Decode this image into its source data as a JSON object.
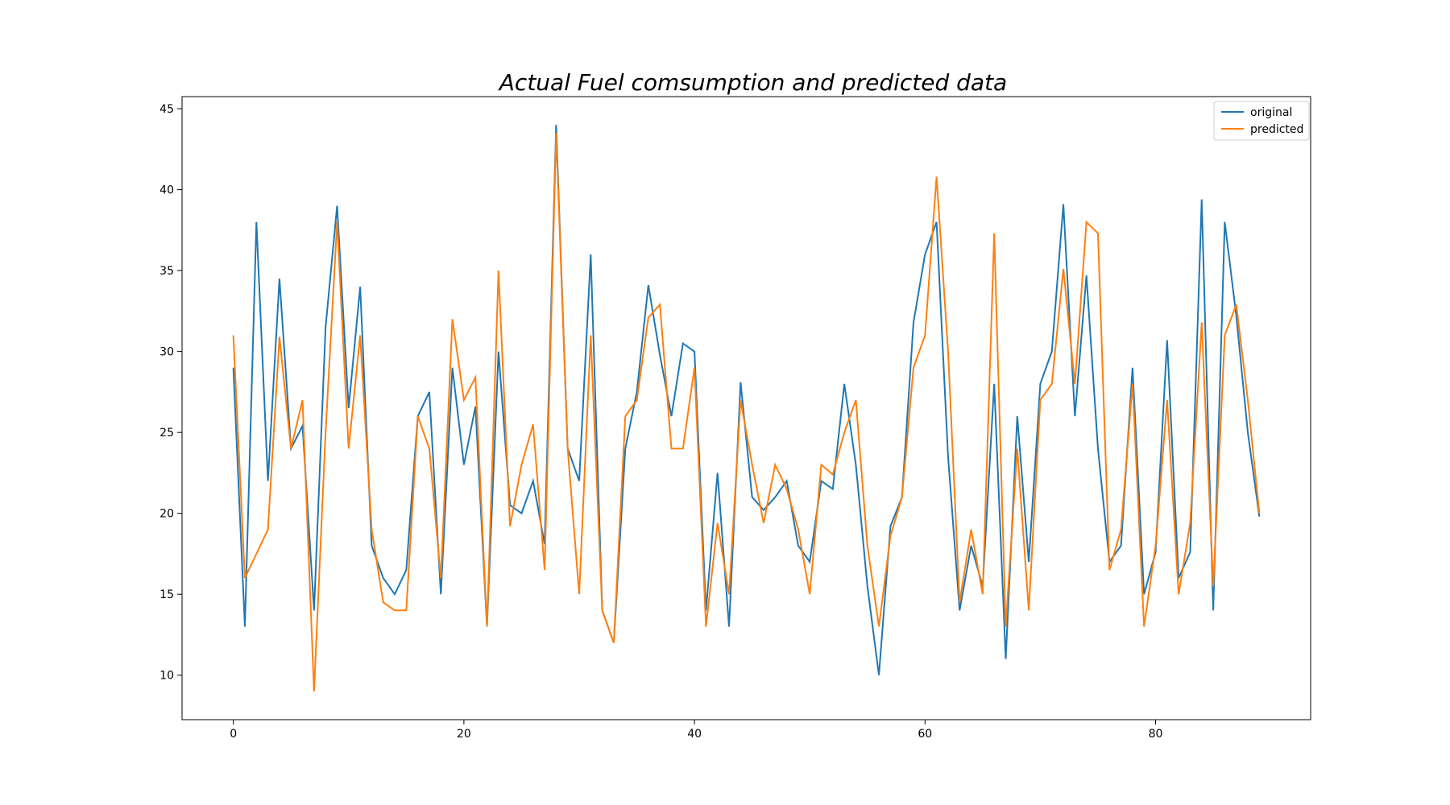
{
  "chart_data": {
    "type": "line",
    "title": "Actual Fuel comsumption and predicted data",
    "xlabel": "",
    "ylabel": "",
    "xlim": [
      -4.45,
      93.45
    ],
    "ylim": [
      7.25,
      45.75
    ],
    "xticks": [
      0,
      20,
      40,
      60,
      80
    ],
    "yticks": [
      10,
      15,
      20,
      25,
      30,
      35,
      40,
      45
    ],
    "grid": false,
    "legend_position": "top-right",
    "colors": {
      "original": "#1f77b4",
      "predicted": "#ff7f0e"
    },
    "series": [
      {
        "name": "original",
        "values": [
          29,
          13,
          38,
          22,
          34.5,
          24,
          25.4,
          14,
          31.5,
          39,
          26.5,
          34,
          18,
          16,
          15,
          16.5,
          26,
          27.5,
          15,
          29,
          23,
          26.6,
          13,
          30,
          20.5,
          20,
          22,
          18.1,
          44,
          24,
          22,
          36,
          14,
          12,
          24,
          27.5,
          34.1,
          29.8,
          26,
          30.5,
          30,
          14,
          22.5,
          13,
          28.1,
          21,
          20.2,
          21,
          22,
          18,
          17,
          22,
          21.5,
          28,
          23,
          15.5,
          10,
          19.2,
          21,
          31.8,
          36,
          38,
          23.5,
          14,
          18,
          15.5,
          28,
          11,
          26,
          17,
          28,
          30,
          39.1,
          26,
          34.7,
          24,
          17,
          18,
          29,
          15,
          17.6,
          30.7,
          16,
          17.6,
          39.4,
          14,
          38,
          32.2,
          25,
          19.8
        ]
      },
      {
        "name": "predicted",
        "values": [
          31,
          16,
          17.5,
          19,
          30.9,
          24,
          27,
          9,
          25,
          38,
          24,
          31,
          19,
          14.5,
          14,
          14,
          26,
          24,
          16,
          32,
          27,
          28.4,
          13,
          35,
          19.2,
          23,
          25.5,
          16.5,
          43.5,
          24,
          15,
          31,
          14,
          12,
          26,
          27,
          32.1,
          32.9,
          24,
          24,
          29,
          13,
          19.4,
          15,
          27,
          23,
          19.4,
          23,
          21.5,
          19,
          15,
          23,
          22.4,
          25,
          27,
          18,
          13,
          18.6,
          21,
          29,
          31,
          40.8,
          30,
          14.5,
          19,
          15,
          37.3,
          13,
          24,
          14,
          27,
          28,
          35.1,
          28,
          38,
          37.3,
          16.5,
          19,
          28,
          13,
          18,
          27,
          15,
          19.4,
          31.8,
          15.5,
          31,
          32.9,
          27,
          20
        ]
      }
    ]
  }
}
